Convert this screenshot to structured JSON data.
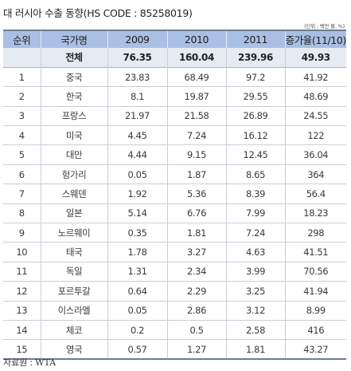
{
  "title": "대 러시아 수출 동향(HS CODE : 85258019)",
  "unit": "(단위 : 백만 불, %)",
  "table": {
    "headers": [
      "순위",
      "국가명",
      "2009",
      "2010",
      "2011",
      "증가율(11/10)"
    ],
    "total": [
      "",
      "전체",
      "76.35",
      "160.04",
      "239.96",
      "49.93"
    ],
    "rows": [
      [
        "1",
        "중국",
        "23.83",
        "68.49",
        "97.2",
        "41.92"
      ],
      [
        "2",
        "한국",
        "8.1",
        "19.87",
        "29.55",
        "48.69"
      ],
      [
        "3",
        "프랑스",
        "21.97",
        "21.58",
        "26.89",
        "24.55"
      ],
      [
        "4",
        "미국",
        "4.45",
        "7.24",
        "16.12",
        "122"
      ],
      [
        "5",
        "대만",
        "4.44",
        "9.15",
        "12.45",
        "36.04"
      ],
      [
        "6",
        "헝가리",
        "0.05",
        "1.87",
        "8.65",
        "364"
      ],
      [
        "7",
        "스웨덴",
        "1.92",
        "5.36",
        "8.39",
        "56.4"
      ],
      [
        "8",
        "일본",
        "5.14",
        "6.76",
        "7.99",
        "18.23"
      ],
      [
        "9",
        "노르웨이",
        "0.35",
        "1.81",
        "7.24",
        "298"
      ],
      [
        "10",
        "태국",
        "1.78",
        "3.27",
        "4.63",
        "41.51"
      ],
      [
        "11",
        "독일",
        "1.31",
        "2.34",
        "3.99",
        "70.56"
      ],
      [
        "12",
        "포르투갈",
        "0.64",
        "2.29",
        "3.25",
        "41.94"
      ],
      [
        "13",
        "이스라엘",
        "0.05",
        "2.86",
        "3.12",
        "8.99"
      ],
      [
        "14",
        "체코",
        "0.2",
        "0.5",
        "2.58",
        "416"
      ],
      [
        "15",
        "영국",
        "0.57",
        "1.27",
        "1.81",
        "43.27"
      ]
    ]
  },
  "source": {
    "label": "자료원",
    "sep": ":",
    "value": "WTA"
  }
}
